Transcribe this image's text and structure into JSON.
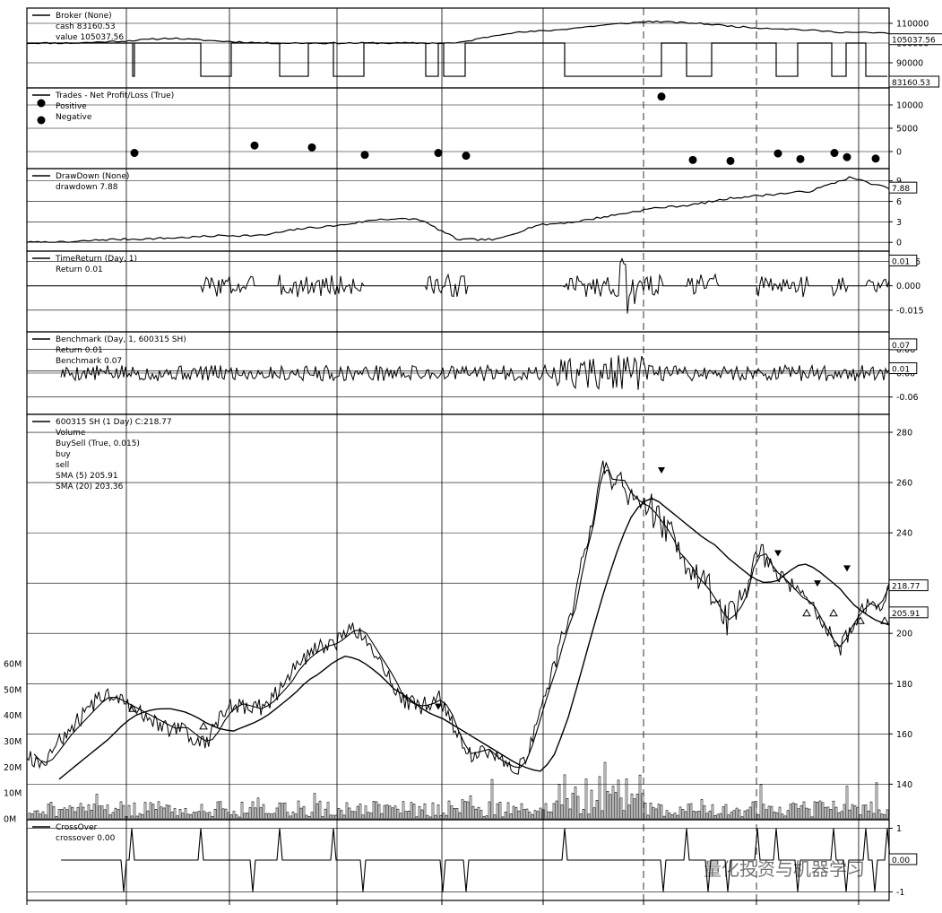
{
  "chart_data": {
    "type": "line",
    "panels": [
      {
        "id": "broker",
        "legend": {
          "title": "Broker (None)",
          "entries": [
            "cash 83160.53",
            "value 105037.56"
          ]
        },
        "yticks": [
          "110000",
          "100000",
          "90000"
        ],
        "ylim": [
          80000,
          115000
        ],
        "tags": [
          "105037.56",
          "83160.53"
        ],
        "series": [
          {
            "name": "cash",
            "values": [
              100000,
              100000,
              83160,
              100000,
              83160,
              100000,
              83160,
              100000,
              83160,
              100000,
              83160,
              100000,
              83160,
              100000,
              83160,
              100000,
              83160
            ]
          },
          {
            "name": "value",
            "values": [
              100000,
              100000,
              101000,
              102500,
              101000,
              100000,
              100000,
              100000,
              100000,
              100000,
              105000,
              106500,
              109000,
              111000,
              110000,
              108000,
              107000,
              105500,
              105000
            ]
          }
        ]
      },
      {
        "id": "trades",
        "legend": {
          "title": "Trades - Net Profit/Loss (True)",
          "entries": [
            "Positive",
            "Negative"
          ]
        },
        "yticks": [
          "10000",
          "5000",
          "0"
        ],
        "ylim": [
          -2500,
          12500
        ],
        "points": [
          {
            "kind": "negative",
            "value": -300
          },
          {
            "kind": "positive",
            "value": 1300
          },
          {
            "kind": "positive",
            "value": 900
          },
          {
            "kind": "negative",
            "value": -700
          },
          {
            "kind": "negative",
            "value": -300
          },
          {
            "kind": "negative",
            "value": -900
          },
          {
            "kind": "positive",
            "value": 11800
          },
          {
            "kind": "negative",
            "value": -1800
          },
          {
            "kind": "negative",
            "value": -2000
          },
          {
            "kind": "negative",
            "value": -400
          },
          {
            "kind": "negative",
            "value": -1600
          },
          {
            "kind": "negative",
            "value": -300
          },
          {
            "kind": "negative",
            "value": -1200
          },
          {
            "kind": "negative",
            "value": -1500
          }
        ]
      },
      {
        "id": "drawdown",
        "legend": {
          "title": "DrawDown (None)",
          "entries": [
            "drawdown 7.88"
          ]
        },
        "yticks": [
          "9",
          "6",
          "3",
          "0"
        ],
        "ylim": [
          -0.5,
          10
        ],
        "tags": [
          "7.88"
        ],
        "series": [
          {
            "name": "drawdown",
            "values": [
              0,
              0,
              0.4,
              0.5,
              0.7,
              1.0,
              1.0,
              2.0,
              2.5,
              3.4,
              3.4,
              0.4,
              0.4,
              2.5,
              3.0,
              4.0,
              5.0,
              5.5,
              6.5,
              7.0,
              7.5,
              9.5,
              7.88
            ]
          }
        ]
      },
      {
        "id": "timereturn",
        "legend": {
          "title": "TimeReturn (Day, 1)",
          "entries": [
            "Return 0.01"
          ]
        },
        "yticks": [
          "0.015",
          "0.000",
          "-0.015"
        ],
        "ylim": [
          -0.025,
          0.018
        ],
        "tags": [
          "0.01"
        ]
      },
      {
        "id": "benchmark",
        "legend": {
          "title": "Benchmark (Day, 1, 600315 SH)",
          "entries": [
            "Return 0.01",
            "Benchmark 0.07"
          ]
        },
        "yticks": [
          "0.06",
          "0.00",
          "-0.06"
        ],
        "ylim": [
          -0.09,
          0.09
        ],
        "tags": [
          "0.07",
          "0.01"
        ]
      },
      {
        "id": "price",
        "legend": {
          "title": "600315 SH (1 Day) C:218.77",
          "entries": [
            "Volume",
            "BuySell (True, 0.015)",
            "buy",
            "sell",
            "SMA (5) 205.91",
            "SMA (20) 203.36"
          ]
        },
        "yticks": [
          "280",
          "260",
          "240",
          "220",
          "200",
          "180",
          "160",
          "140"
        ],
        "ylim": [
          128,
          285
        ],
        "volume_ticks": [
          "60M",
          "50M",
          "40M",
          "30M",
          "20M",
          "10M",
          "0M"
        ],
        "volume_max": 70,
        "tags": [
          "218.77",
          "205.91",
          "203.36"
        ],
        "close": [
          152,
          148,
          150,
          155,
          160,
          164,
          168,
          172,
          175,
          174,
          172,
          170,
          168,
          166,
          164,
          162,
          163,
          160,
          157,
          158,
          165,
          170,
          172,
          171,
          170,
          172,
          176,
          180,
          186,
          190,
          193,
          195,
          196,
          199,
          202,
          200,
          194,
          188,
          182,
          174,
          172,
          171,
          172,
          174,
          168,
          158,
          152,
          153,
          154,
          150,
          148,
          146,
          150,
          162,
          175,
          186,
          200,
          210,
          230,
          245,
          270,
          260,
          262,
          255,
          252,
          250,
          245,
          240,
          232,
          228,
          222,
          218,
          212,
          205,
          208,
          214,
          230,
          232,
          225,
          222,
          218,
          214,
          212,
          205,
          198,
          194,
          202,
          208,
          212,
          210,
          218.77
        ],
        "sma20": [
          142,
          146,
          150,
          154,
          158,
          163,
          167,
          169,
          170,
          170,
          169,
          167,
          164,
          162,
          161,
          163,
          165,
          168,
          172,
          176,
          181,
          184,
          188,
          191,
          190,
          187,
          183,
          178,
          175,
          171,
          168,
          166,
          163,
          160,
          157,
          154,
          151,
          148,
          146,
          145,
          152,
          165,
          182,
          200,
          217,
          232,
          245,
          252,
          254,
          250,
          246,
          242,
          238,
          235,
          230,
          226,
          222,
          220,
          221,
          225,
          228,
          226,
          222,
          218,
          212,
          208,
          205,
          203.36
        ],
        "buy_marks": [
          170,
          163,
          208,
          205,
          205,
          208
        ],
        "sell_marks": [
          171,
          265,
          232,
          226,
          220
        ]
      },
      {
        "id": "crossover",
        "legend": {
          "title": "CrossOver",
          "entries": [
            "crossover 0.00"
          ]
        },
        "yticks": [
          "1",
          "-1"
        ],
        "ylim": [
          -1.1,
          1.1
        ],
        "tags": [
          "0.00"
        ]
      }
    ]
  },
  "watermark": "量化投资与机器学习",
  "colors": {
    "line": "#000000",
    "grid": "#000000",
    "background": "#ffffff"
  }
}
